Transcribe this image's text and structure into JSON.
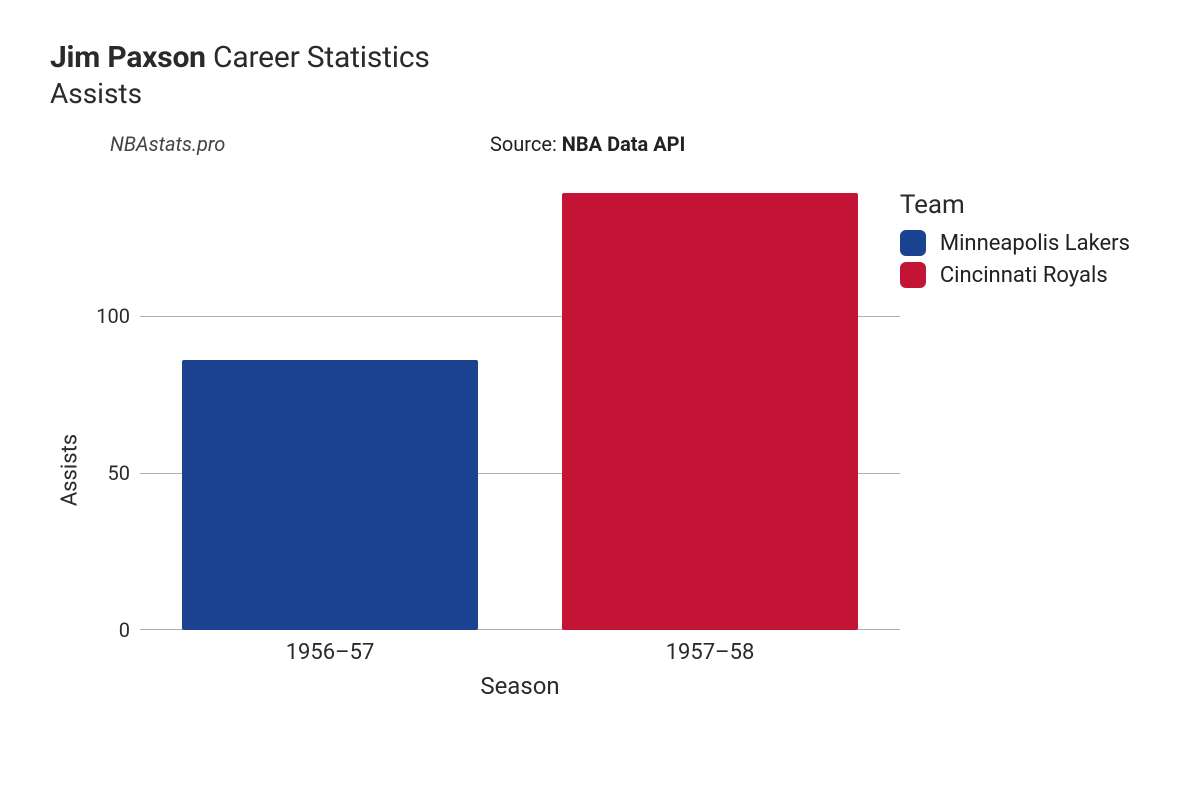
{
  "title": {
    "name_bold": "Jim Paxson",
    "suffix": " Career Statistics",
    "subtitle": "Assists"
  },
  "attrib": {
    "left": "NBAstats.pro",
    "right_prefix": "Source: ",
    "right_bold": "NBA Data API"
  },
  "chart": {
    "type": "bar",
    "ylabel": "Assists",
    "xlabel": "Season",
    "ylim": [
      0,
      140
    ],
    "ytick_step": 50,
    "grid_color": "#b0b0b0",
    "background_color": "#ffffff",
    "label_fontsize": 22,
    "tick_fontsize": 20,
    "bar_width": 0.78,
    "categories": [
      "1956–57",
      "1957–58"
    ],
    "values": [
      86,
      139
    ],
    "bar_colors": [
      "#1a4290",
      "#c41436"
    ],
    "bar_teams": [
      "Minneapolis Lakers",
      "Cincinnati Royals"
    ]
  },
  "legend": {
    "title": "Team",
    "items": [
      {
        "label": "Minneapolis Lakers",
        "color": "#1a4290"
      },
      {
        "label": "Cincinnati Royals",
        "color": "#c41436"
      }
    ]
  }
}
